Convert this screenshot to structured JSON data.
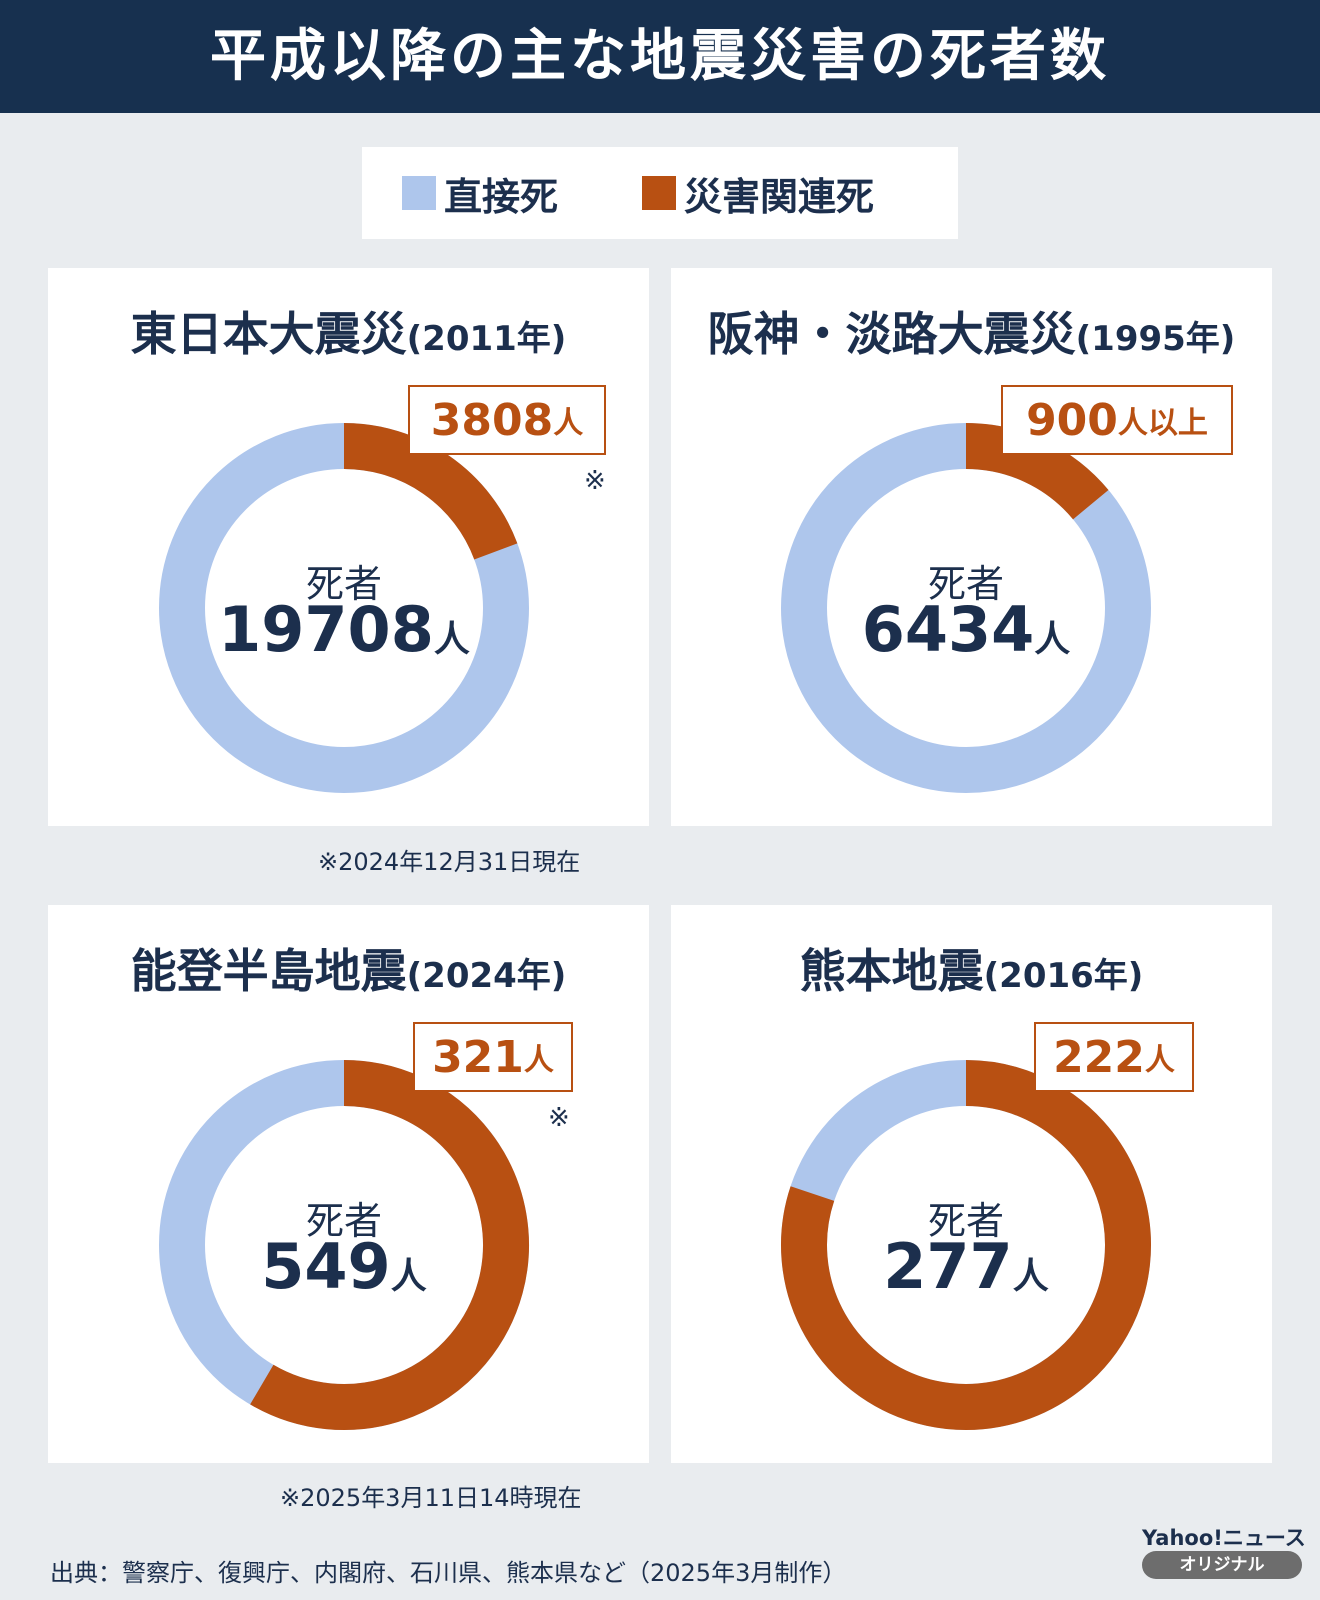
{
  "header": {
    "title": "平成以降の主な地震災害の死者数"
  },
  "legend": {
    "direct_label": "直接死",
    "related_label": "災害関連死",
    "direct_color": "#aec6ec",
    "related_color": "#b85012"
  },
  "center_label": "死者",
  "unit": "人",
  "panels": [
    {
      "title": "東日本大震災",
      "year": "(2011年)",
      "total": "19708",
      "related_num": "3808",
      "related_unit": "人",
      "related_mark": "※"
    },
    {
      "title": "阪神・淡路大震災",
      "year": "(1995年)",
      "total": "6434",
      "related_num": "900",
      "related_unit": "人以上",
      "related_mark": ""
    },
    {
      "title": "能登半島地震",
      "year": "(2024年)",
      "total": "549",
      "related_num": "321",
      "related_unit": "人",
      "related_mark": "※"
    },
    {
      "title": "熊本地震",
      "year": "(2016年)",
      "total": "277",
      "related_num": "222",
      "related_unit": "人",
      "related_mark": ""
    }
  ],
  "notes": {
    "note1": "※2024年12月31日現在",
    "note2": "※2025年3月11日14時現在"
  },
  "source": "出典：警察庁、復興庁、内閣府、石川県、熊本県など（2025年3月制作）",
  "logo": {
    "top": "Yahoo!ニュース",
    "pill": "オリジナル"
  },
  "chart_data": [
    {
      "type": "pie",
      "title": "東日本大震災(2011年)",
      "total": 19708,
      "categories": [
        "災害関連死",
        "直接死"
      ],
      "values": [
        3808,
        15900
      ]
    },
    {
      "type": "pie",
      "title": "阪神・淡路大震災(1995年)",
      "total": 6434,
      "categories": [
        "災害関連死",
        "直接死"
      ],
      "values": [
        900,
        5534
      ]
    },
    {
      "type": "pie",
      "title": "能登半島地震(2024年)",
      "total": 549,
      "categories": [
        "災害関連死",
        "直接死"
      ],
      "values": [
        321,
        228
      ]
    },
    {
      "type": "pie",
      "title": "熊本地震(2016年)",
      "total": 277,
      "categories": [
        "災害関連死",
        "直接死"
      ],
      "values": [
        222,
        55
      ]
    }
  ]
}
